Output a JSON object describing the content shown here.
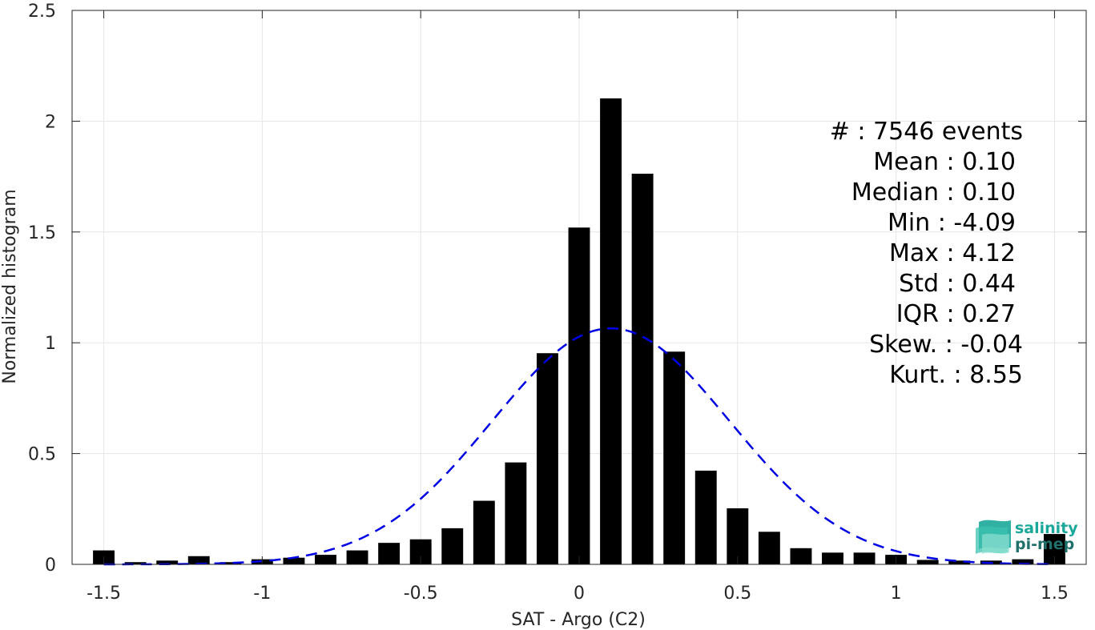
{
  "chart_data": {
    "type": "bar",
    "xlabel": "SAT - Argo (C2)",
    "ylabel": "Normalized histogram",
    "xlim": [
      -1.6,
      1.6
    ],
    "ylim": [
      0,
      2.5
    ],
    "grid": true,
    "bar_width": 0.068,
    "xticks": [
      -1.5,
      -1,
      -0.5,
      0,
      0.5,
      1,
      1.5
    ],
    "xtick_labels": [
      "-1.5",
      "-1",
      "-0.5",
      "0",
      "0.5",
      "1",
      "1.5"
    ],
    "yticks": [
      0,
      0.5,
      1,
      1.5,
      2,
      2.5
    ],
    "ytick_labels": [
      "0",
      "0.5",
      "1",
      "1.5",
      "2",
      "2.5"
    ],
    "bins": [
      -1.5,
      -1.4,
      -1.3,
      -1.2,
      -1.1,
      -1.0,
      -0.9,
      -0.8,
      -0.7,
      -0.6,
      -0.5,
      -0.4,
      -0.3,
      -0.2,
      -0.1,
      0.0,
      0.1,
      0.2,
      0.3,
      0.4,
      0.5,
      0.6,
      0.7,
      0.8,
      0.9,
      1.0,
      1.1,
      1.2,
      1.3,
      1.4,
      1.5
    ],
    "values": [
      0.063,
      0.01,
      0.017,
      0.037,
      0.01,
      0.023,
      0.03,
      0.043,
      0.063,
      0.097,
      0.113,
      0.163,
      0.287,
      0.46,
      0.953,
      1.52,
      2.103,
      1.763,
      0.96,
      0.423,
      0.253,
      0.147,
      0.073,
      0.053,
      0.053,
      0.043,
      0.02,
      0.017,
      0.017,
      0.023,
      0.137
    ],
    "fit_curve": {
      "style": "dashed",
      "color": "#0000e6",
      "mean": 0.1,
      "std": 0.375,
      "peak": 1.065,
      "x_range": [
        -1.5,
        1.5
      ]
    },
    "stats": [
      {
        "label": "#  : 7546 events"
      },
      {
        "label": "Mean : 0.10"
      },
      {
        "label": "Median : 0.10"
      },
      {
        "label": "Min : -4.09"
      },
      {
        "label": "Max : 4.12"
      },
      {
        "label": "Std : 0.44"
      },
      {
        "label": "IQR : 0.27"
      },
      {
        "label": "Skew. : -0.04"
      },
      {
        "label": "Kurt. : 8.55"
      }
    ],
    "colors": {
      "bar": "#000000",
      "grid": "#e6e6e6",
      "axis": "#262626",
      "fit": "#0000e6"
    }
  },
  "logo": {
    "line1": "salinity",
    "line2": "pi-mep",
    "color_primary": "#1aa89a",
    "color_secondary": "#1f6f6a"
  }
}
